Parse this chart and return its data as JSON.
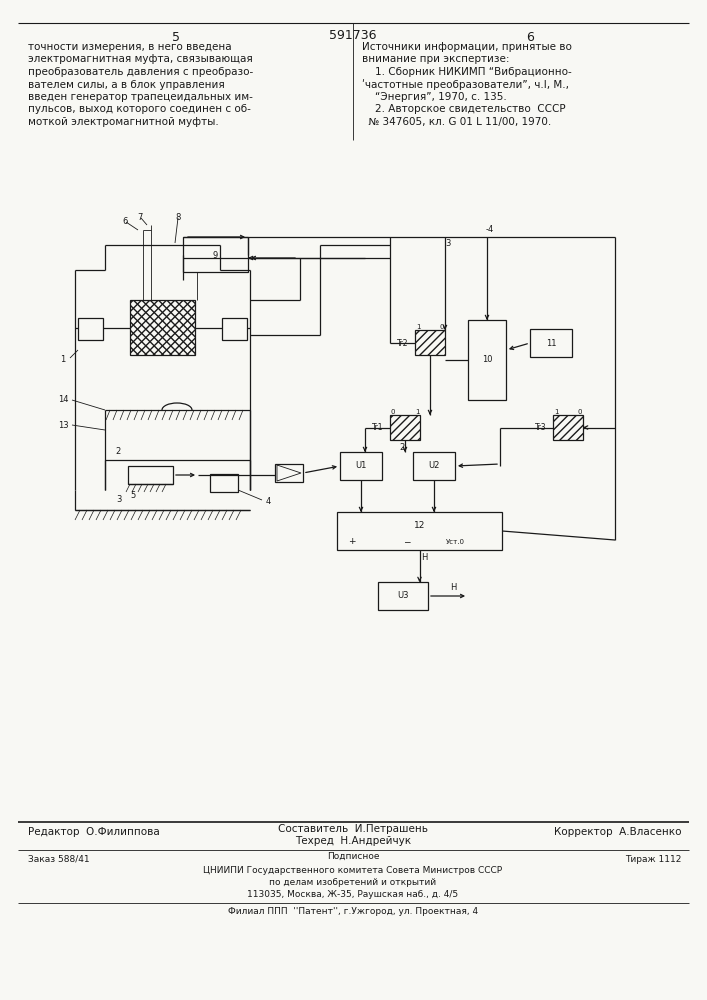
{
  "page_number_center": "591736",
  "page_number_left": "5",
  "page_number_right": "6",
  "bg_color": "#f8f8f4",
  "text_color": "#1a1a1a",
  "left_column_lines": [
    "точности измерения, в него введена",
    "электромагнитная муфта, связывающая",
    "преобразователь давления с преобразо-",
    "вателем силы, а в блок управления",
    "введен генератор трапецеидальных им-",
    "пульсов, выход которого соединен с об-",
    "моткой электромагнитной муфты."
  ],
  "right_column_lines": [
    "Источники информации, принятые во",
    "внимание при экспертизе:",
    "    1. Сборник НИКИМП “Вибрационно-",
    "ʹчастотные преобразователи”, ч.I, М.,",
    "    “Энергия”, 1970, с. 135.",
    "    2. Авторское свидетельство  СССР",
    "  № 347605, кл. G 01 L 11/00, 1970."
  ],
  "footer_editor": "Редактор  О.Филиппова",
  "footer_comp_top": "Составитель  И.Петрашень",
  "footer_comp_bot": "Техред  Н.Андрейчук",
  "footer_corrector": "Корректор  А.Власенко",
  "footer_podpisnoe": "Подписное",
  "footer_tirazh": "Тираж 1112",
  "footer_zakaz": "Заказ 588/41",
  "footer_tsniipI": "ЦНИИПИ Государственного комитета Совета Министров СССР",
  "footer_po_delam": "по делам изобретений и открытий",
  "footer_addr": "113035, Москва, Ж-35, Раушская наб., д. 4/5",
  "footer_filial": "Филиал ППП  ''Патент'', г.Ужгород, ул. Проектная, 4"
}
